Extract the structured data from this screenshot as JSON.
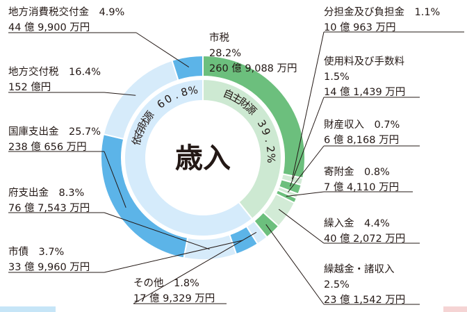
{
  "chart_data": {
    "type": "donut",
    "title": "歳入",
    "inner_groups": [
      {
        "name": "依存財源",
        "percent": "60.8%",
        "value": 60.8,
        "color": "#d5ebfb"
      },
      {
        "name": "自主財源",
        "percent": "39.2%",
        "value": 39.2,
        "color": "#cde9d2"
      }
    ],
    "segments": [
      {
        "name": "市税",
        "percent": "28.2%",
        "amount": "260 億 9,088 万円",
        "value": 28.2,
        "group": "自主財源",
        "color": "#6cbf7d"
      },
      {
        "name": "分担金及び負担金",
        "percent": "1.1%",
        "amount": "10 億 963 万円",
        "value": 1.1,
        "group": "自主財源",
        "color": "#d2ebd6"
      },
      {
        "name": "使用料及び手数料",
        "percent": "1.5%",
        "amount": "14 億 1,439 万円",
        "value": 1.5,
        "group": "自主財源",
        "color": "#6cbf7d"
      },
      {
        "name": "財産収入",
        "percent": "0.7%",
        "amount": "6 億 8,168 万円",
        "value": 0.7,
        "group": "自主財源",
        "color": "#d2ebd6"
      },
      {
        "name": "寄附金",
        "percent": "0.8%",
        "amount": "7 億 4,110 万円",
        "value": 0.8,
        "group": "自主財源",
        "color": "#6cbf7d"
      },
      {
        "name": "繰入金",
        "percent": "4.4%",
        "amount": "40 億 2,072 万円",
        "value": 4.4,
        "group": "自主財源",
        "color": "#d2ebd6"
      },
      {
        "name": "繰越金・諸収入",
        "percent": "2.5%",
        "amount": "23 億 1,542 万円",
        "value": 2.5,
        "group": "自主財源",
        "color": "#6cbf7d"
      },
      {
        "name": "その他",
        "percent": "1.8%",
        "amount": "17 億 9,329 万円",
        "value": 1.8,
        "group": "依存財源",
        "color": "#d6ebfa"
      },
      {
        "name": "市債",
        "percent": "3.7%",
        "amount": "33 億 9,960 万円",
        "value": 3.7,
        "group": "依存財源",
        "color": "#5cb4e8"
      },
      {
        "name": "府支出金",
        "percent": "8.3%",
        "amount": "76 億 7,543 万円",
        "value": 8.3,
        "group": "依存財源",
        "color": "#d6ebfa"
      },
      {
        "name": "国庫支出金",
        "percent": "25.7%",
        "amount": "238 億 656 万円",
        "value": 25.7,
        "group": "依存財源",
        "color": "#5cb4e8"
      },
      {
        "name": "地方交付税",
        "percent": "16.4%",
        "amount": "152 億円",
        "value": 16.4,
        "group": "依存財源",
        "color": "#d6ebfa"
      },
      {
        "name": "地方消費税交付金",
        "percent": "4.9%",
        "amount": "44 億 9,900 万円",
        "value": 4.9,
        "group": "依存財源",
        "color": "#5cb4e8"
      }
    ]
  }
}
